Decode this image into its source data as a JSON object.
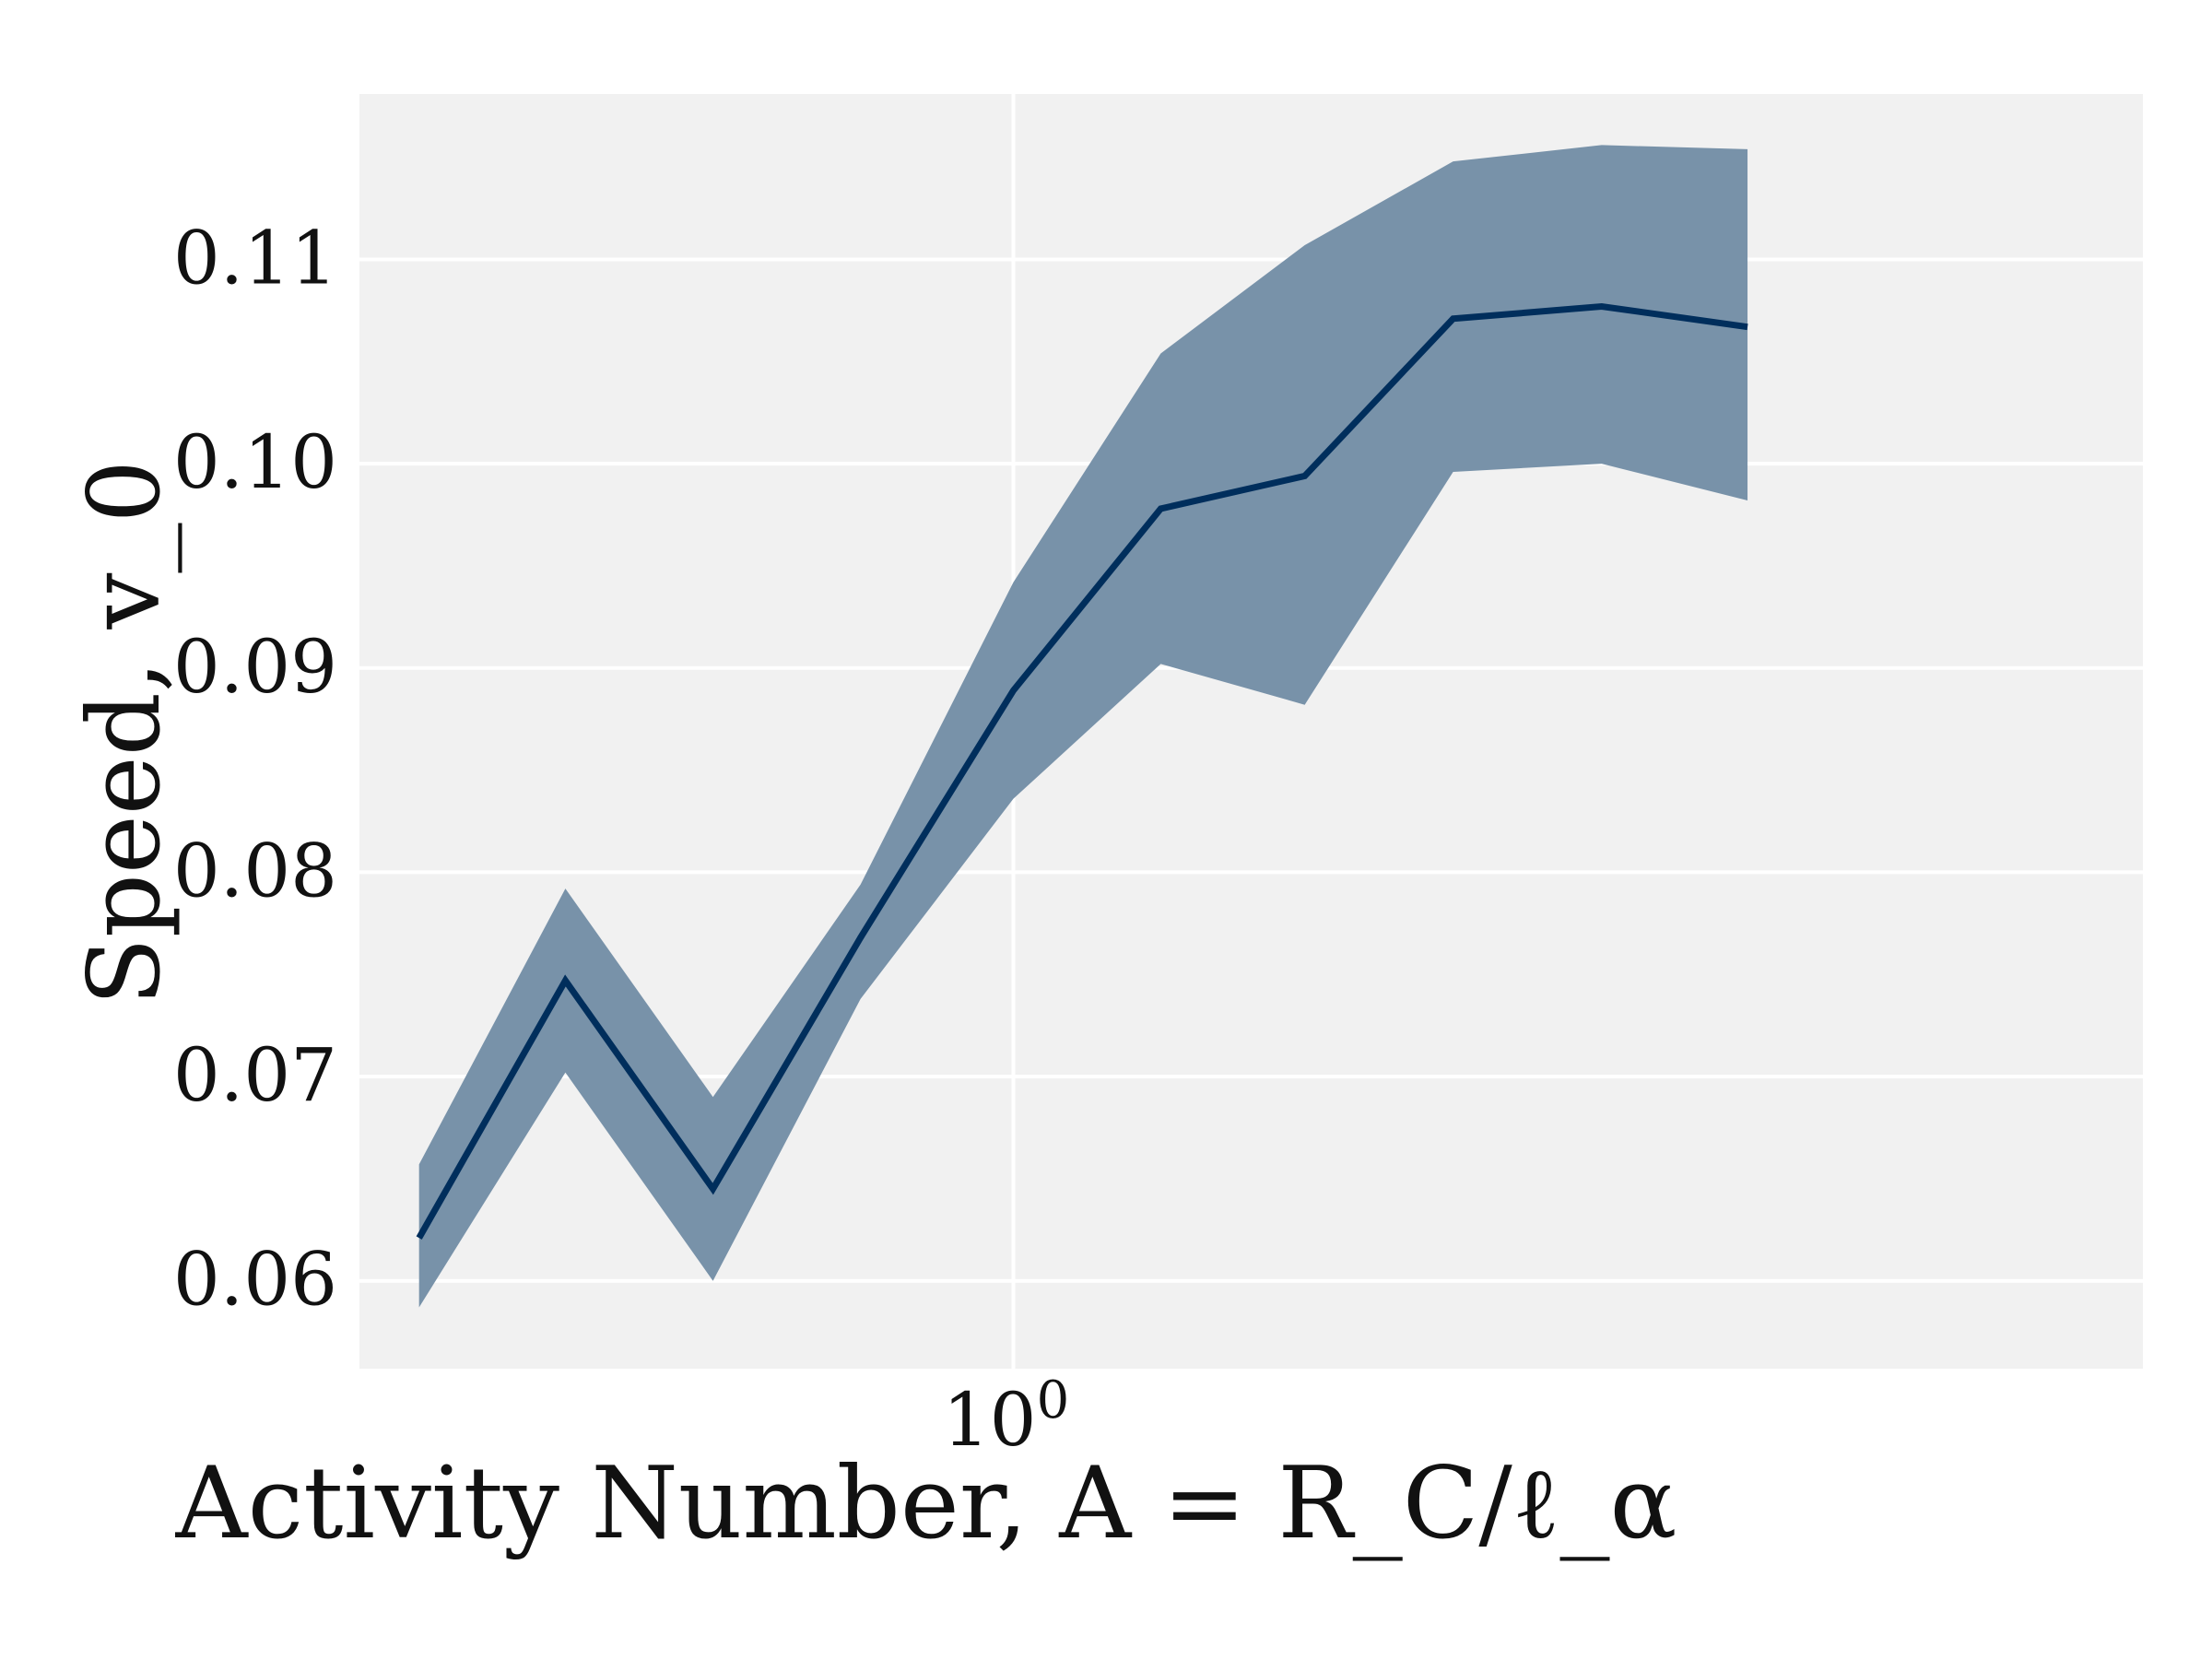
{
  "chart_data": {
    "type": "line",
    "x_scale": "log",
    "xlabel": "Activity Number, A = R_C/ℓ_α",
    "ylabel": "Speed, v_0",
    "x_ticks": [
      {
        "value": 1,
        "label": "10^0"
      }
    ],
    "y_ticks": [
      0.06,
      0.07,
      0.08,
      0.09,
      0.1,
      0.11
    ],
    "y_tick_labels": [
      "0.06",
      "0.07",
      "0.08",
      "0.09",
      "0.10",
      "0.11"
    ],
    "xlim": [
      0.385,
      5.2
    ],
    "ylim": [
      0.0557,
      0.1181
    ],
    "grid": true,
    "colors": {
      "line": "#002e5c",
      "band": "#7892a9",
      "background": "#f1f1f1",
      "grid": "#ffffff"
    },
    "x": [
      0.42,
      0.52,
      0.645,
      0.8,
      1.0,
      1.24,
      1.53,
      1.9,
      2.36,
      2.92
    ],
    "series": [
      {
        "mean": [
          0.0621,
          0.0747,
          0.0645,
          0.0768,
          0.0889,
          0.0978,
          0.0994,
          0.1071,
          0.1077,
          0.1067
        ],
        "upper": [
          0.0657,
          0.0792,
          0.069,
          0.0794,
          0.0942,
          0.1054,
          0.1107,
          0.1148,
          0.1156,
          0.1154
        ],
        "lower": [
          0.0587,
          0.0702,
          0.06,
          0.0738,
          0.0836,
          0.0902,
          0.0882,
          0.0996,
          0.1,
          0.0982
        ]
      }
    ]
  }
}
